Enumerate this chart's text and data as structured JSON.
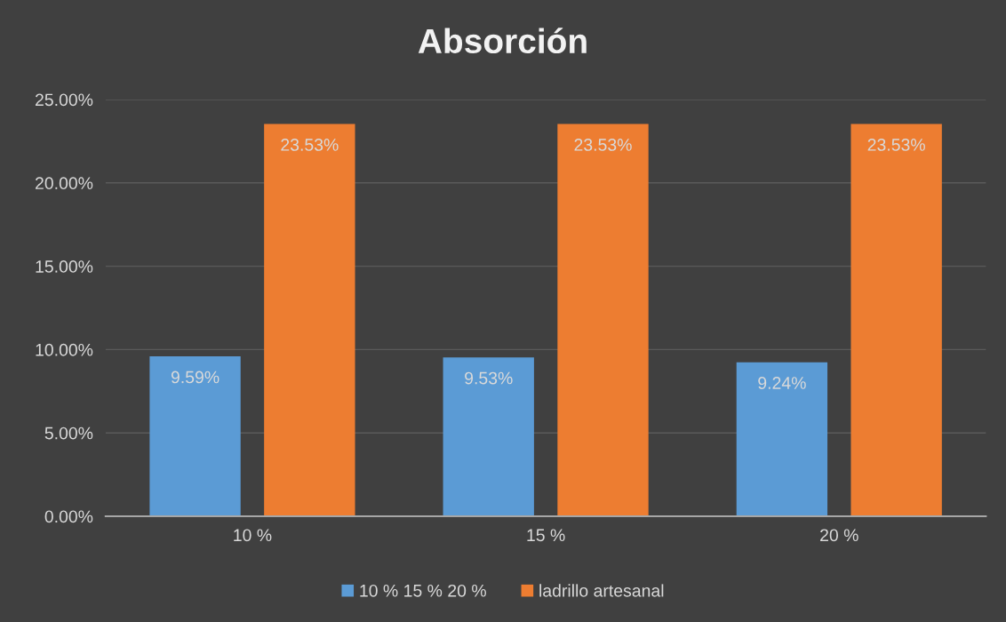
{
  "chart_data": {
    "type": "bar",
    "title": "Absorción",
    "categories": [
      "10 %",
      "15 %",
      "20 %"
    ],
    "series": [
      {
        "name": "10 % 15 % 20 %",
        "color": "#5b9bd5",
        "values": [
          9.59,
          9.53,
          9.24
        ],
        "value_labels": [
          "9.59%",
          "9.53%",
          "9.24%"
        ]
      },
      {
        "name": "ladrillo artesanal",
        "color": "#ed7d31",
        "values": [
          23.53,
          23.53,
          23.53
        ],
        "value_labels": [
          "23.53%",
          "23.53%",
          "23.53%"
        ]
      }
    ],
    "ylim": [
      0,
      25
    ],
    "yticks": [
      {
        "value": 0,
        "label": "0.00%"
      },
      {
        "value": 5,
        "label": "5.00%"
      },
      {
        "value": 10,
        "label": "10.00%"
      },
      {
        "value": 15,
        "label": "15.00%"
      },
      {
        "value": 20,
        "label": "20.00%"
      },
      {
        "value": 25,
        "label": "25.00%"
      }
    ],
    "grid": "y",
    "legend": "bottom"
  }
}
